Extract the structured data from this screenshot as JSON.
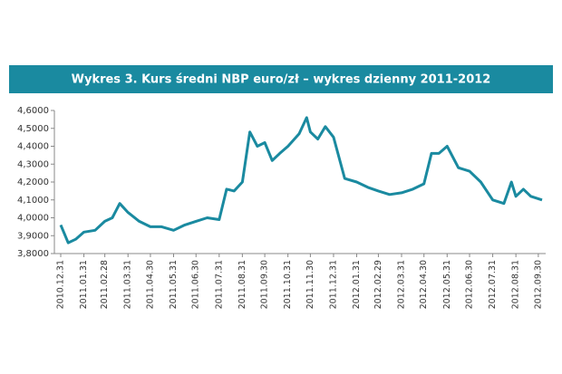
{
  "chart_data": {
    "type": "line",
    "title": "Wykres 3. Kurs średni NBP euro/zł – wykres dzienny 2011-2012",
    "x": [
      "2010.12.31",
      "2011.01.10",
      "2011.01.20",
      "2011.01.31",
      "2011.02.15",
      "2011.02.28",
      "2011.03.10",
      "2011.03.20",
      "2011.03.31",
      "2011.04.15",
      "2011.04.30",
      "2011.05.15",
      "2011.05.31",
      "2011.06.15",
      "2011.06.30",
      "2011.07.15",
      "2011.07.31",
      "2011.08.10",
      "2011.08.20",
      "2011.08.31",
      "2011.09.10",
      "2011.09.20",
      "2011.09.30",
      "2011.10.10",
      "2011.10.20",
      "2011.10.31",
      "2011.11.15",
      "2011.11.25",
      "2011.11.30",
      "2011.12.10",
      "2011.12.20",
      "2011.12.31",
      "2012.01.15",
      "2012.01.31",
      "2012.02.15",
      "2012.02.29",
      "2012.03.15",
      "2012.03.31",
      "2012.04.15",
      "2012.04.30",
      "2012.05.10",
      "2012.05.20",
      "2012.05.31",
      "2012.06.15",
      "2012.06.30",
      "2012.07.15",
      "2012.07.31",
      "2012.08.15",
      "2012.08.25",
      "2012.08.31",
      "2012.09.10",
      "2012.09.20",
      "2012.10.05"
    ],
    "values": [
      3.96,
      3.86,
      3.88,
      3.92,
      3.93,
      3.98,
      4.0,
      4.08,
      4.03,
      3.98,
      3.95,
      3.95,
      3.93,
      3.96,
      3.98,
      4.0,
      3.99,
      4.16,
      4.15,
      4.2,
      4.48,
      4.4,
      4.42,
      4.32,
      4.36,
      4.4,
      4.47,
      4.56,
      4.48,
      4.44,
      4.51,
      4.45,
      4.22,
      4.2,
      4.17,
      4.15,
      4.13,
      4.14,
      4.16,
      4.19,
      4.36,
      4.36,
      4.4,
      4.28,
      4.26,
      4.2,
      4.1,
      4.08,
      4.2,
      4.12,
      4.16,
      4.12,
      4.1
    ],
    "color": "#1a8aa0",
    "xlim": [
      "2010.12.31",
      "2012.10.05"
    ],
    "xticks": [
      "2010.12.31",
      "2011.01.31",
      "2011.02.28",
      "2011.03.31",
      "2011.04.30",
      "2011.05.31",
      "2011.06.30",
      "2011.07.31",
      "2011.08.31",
      "2011.09.30",
      "2011.10.31",
      "2011.11.30",
      "2011.12.31",
      "2012.01.31",
      "2012.02.29",
      "2012.03.31",
      "2012.04.30",
      "2012.05.31",
      "2012.06.30",
      "2012.07.31",
      "2012.08.31",
      "2012.09.30"
    ],
    "ylim": [
      3.8,
      4.6
    ],
    "yticks": [
      {
        "value": 3.8,
        "label": "3,8000"
      },
      {
        "value": 3.9,
        "label": "3,9000"
      },
      {
        "value": 4.0,
        "label": "4,0000"
      },
      {
        "value": 4.1,
        "label": "4,1000"
      },
      {
        "value": 4.2,
        "label": "4,2000"
      },
      {
        "value": 4.3,
        "label": "4,3000"
      },
      {
        "value": 4.4,
        "label": "4,4000"
      },
      {
        "value": 4.5,
        "label": "4,5000"
      },
      {
        "value": 4.6,
        "label": "4,6000"
      }
    ]
  }
}
